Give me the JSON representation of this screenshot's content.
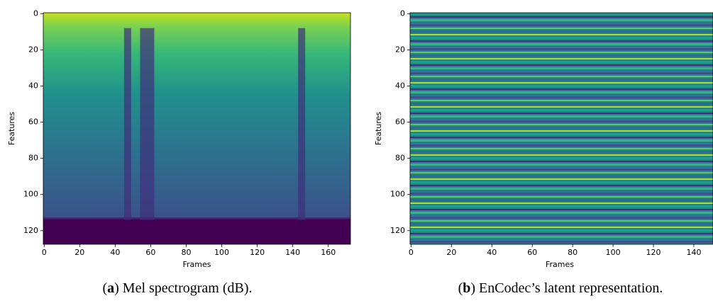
{
  "chart_data": [
    {
      "type": "heatmap",
      "xlabel": "Frames",
      "ylabel": "Features",
      "xlim": [
        -0.5,
        172.5
      ],
      "ylim": [
        127.5,
        -0.5
      ],
      "xticks": [
        0,
        20,
        40,
        60,
        80,
        100,
        120,
        140,
        160
      ],
      "yticks": [
        0,
        20,
        40,
        60,
        80,
        100,
        120
      ],
      "colormap": "viridis",
      "caption_parts": [
        "(",
        "a",
        ") Mel spectrogram (dB)."
      ]
    },
    {
      "type": "heatmap",
      "xlabel": "Frames",
      "ylabel": "Features",
      "xlim": [
        -0.5,
        149.5
      ],
      "ylim": [
        127.5,
        -0.5
      ],
      "xticks": [
        0,
        20,
        40,
        60,
        80,
        100,
        120,
        140
      ],
      "yticks": [
        0,
        20,
        40,
        60,
        80,
        100,
        120
      ],
      "colormap": "viridis",
      "caption_parts": [
        "(",
        "b",
        ") EnCodec’s latent representation."
      ]
    }
  ]
}
